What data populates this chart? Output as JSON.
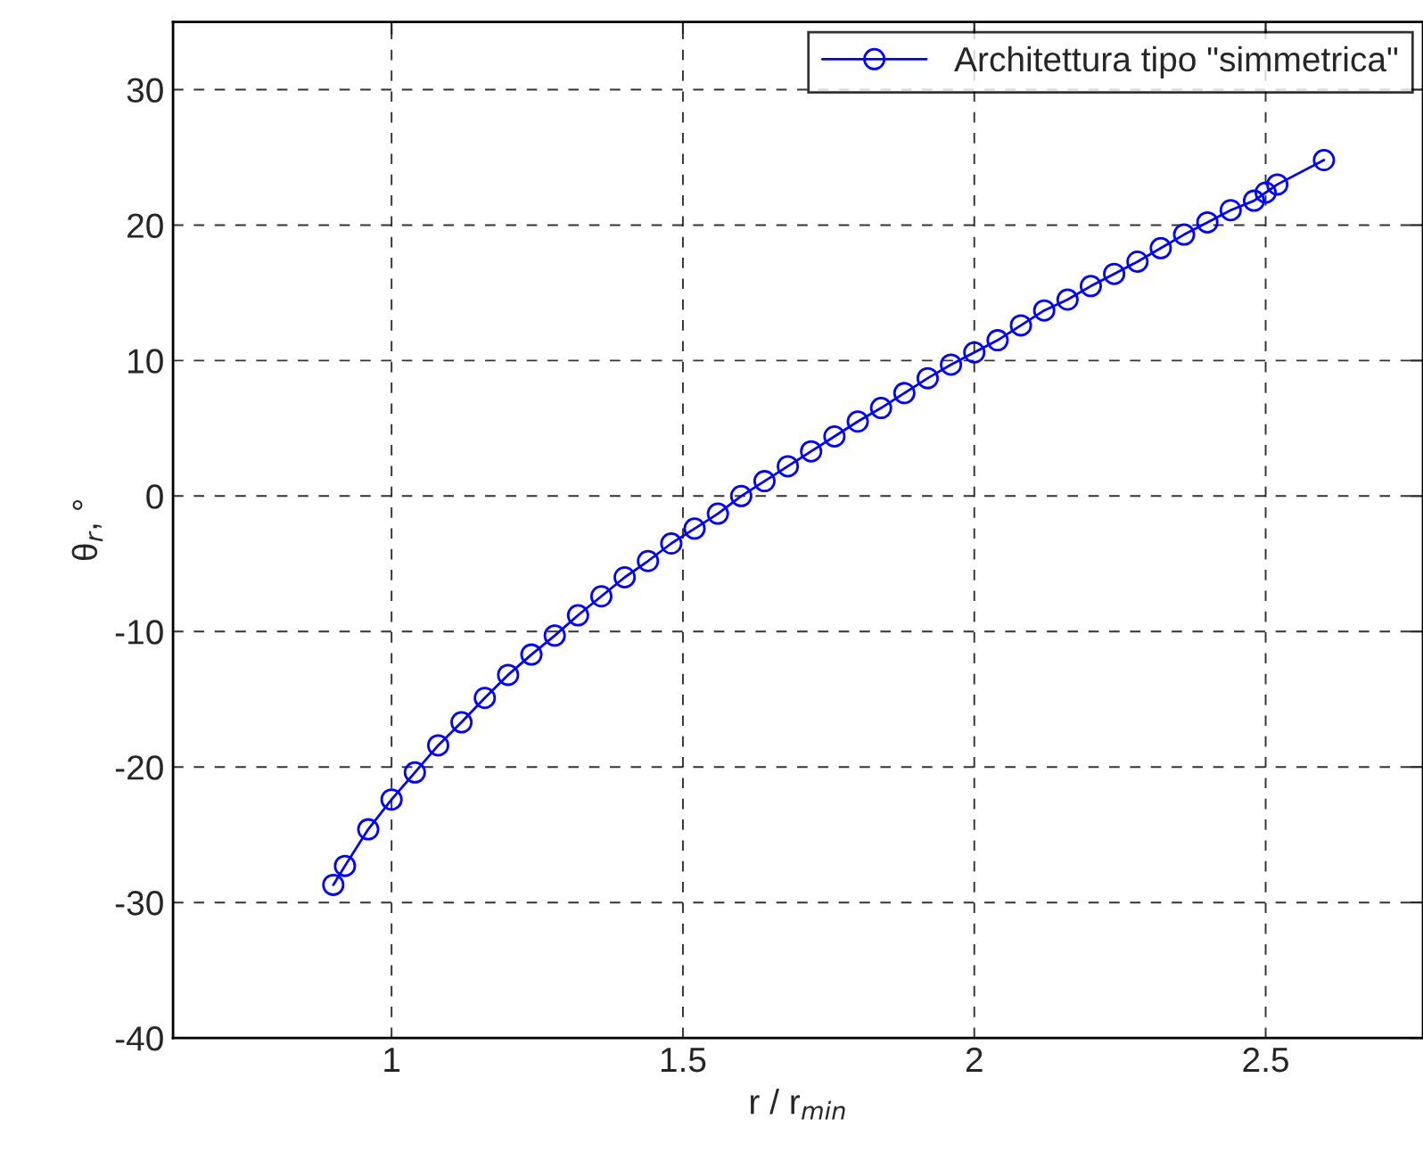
{
  "chart_data": {
    "type": "line",
    "xlabel": "r / r$_{min}$",
    "ylabel": "θ$_{r}$, °",
    "x": [
      0.9,
      0.92,
      0.96,
      1.0,
      1.04,
      1.08,
      1.12,
      1.16,
      1.2,
      1.24,
      1.28,
      1.32,
      1.36,
      1.4,
      1.44,
      1.48,
      1.52,
      1.56,
      1.6,
      1.64,
      1.68,
      1.72,
      1.76,
      1.8,
      1.84,
      1.88,
      1.92,
      1.96,
      2.0,
      2.04,
      2.08,
      2.12,
      2.16,
      2.2,
      2.24,
      2.28,
      2.32,
      2.36,
      2.4,
      2.44,
      2.48,
      2.5,
      2.52,
      2.6
    ],
    "series": [
      {
        "name": "Architettura tipo \"simmetrica\"",
        "color": "#0000ff",
        "values": [
          -28.7,
          -27.3,
          -24.6,
          -22.4,
          -20.4,
          -18.4,
          -16.7,
          -14.9,
          -13.2,
          -11.7,
          -10.3,
          -8.8,
          -7.4,
          -6.0,
          -4.8,
          -3.5,
          -2.4,
          -1.3,
          0,
          1.1,
          2.2,
          3.3,
          4.4,
          5.5,
          6.5,
          7.6,
          8.7,
          9.7,
          10.6,
          11.5,
          12.6,
          13.7,
          14.5,
          15.5,
          16.4,
          17.3,
          18.3,
          19.3,
          20.2,
          21.1,
          21.8,
          22.4,
          23.0,
          24.8
        ]
      }
    ],
    "xlim": [
      0.625,
      2.77
    ],
    "ylim": [
      -40,
      35
    ],
    "xticks": [
      1,
      1.5,
      2,
      2.5
    ],
    "yticks": [
      -40,
      -30,
      -20,
      -10,
      0,
      10,
      20,
      30
    ],
    "grid": true,
    "legend": "top right",
    "marker": "circle",
    "line_style": "solid"
  }
}
